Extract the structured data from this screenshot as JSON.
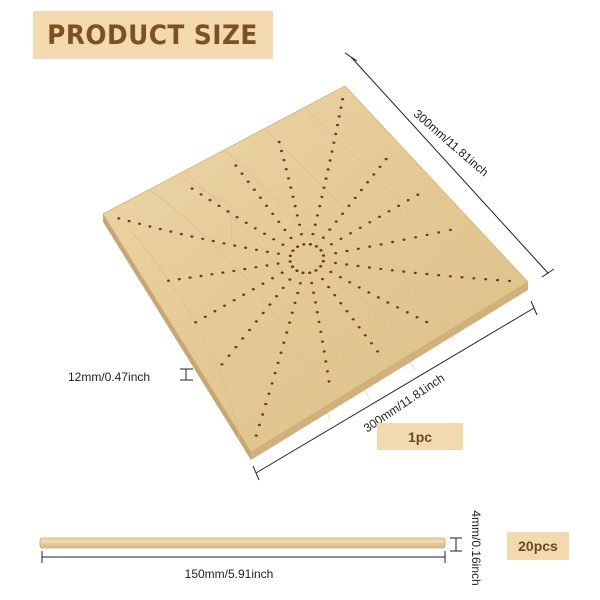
{
  "title": "PRODUCT SIZE",
  "board": {
    "width_label": "300mm/11.81inch",
    "length_label": "300mm/11.81inch",
    "thickness_label": "12mm/0.47inch",
    "quantity": "1pc",
    "wood_color": "#e7cf9f",
    "hole_color": "#6a3b1d"
  },
  "stick": {
    "length_label": "150mm/5.91inch",
    "thickness_label": "4mm/0.16inch",
    "quantity": "20pcs",
    "wood_color": "#e9d2a4"
  },
  "colors": {
    "banner": "#f3d9ae",
    "banner_text": "#7a5223"
  }
}
